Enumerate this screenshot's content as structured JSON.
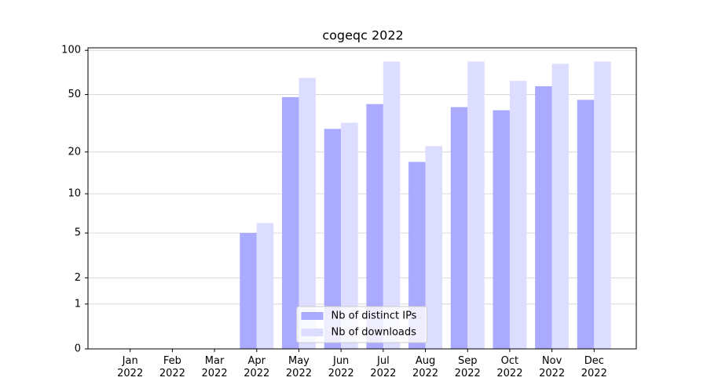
{
  "chart_data": {
    "type": "bar",
    "title": "cogeqc 2022",
    "categories": [
      "Jan\n2022",
      "Feb\n2022",
      "Mar\n2022",
      "Apr\n2022",
      "May\n2022",
      "Jun\n2022",
      "Jul\n2022",
      "Aug\n2022",
      "Sep\n2022",
      "Oct\n2022",
      "Nov\n2022",
      "Dec\n2022"
    ],
    "series": [
      {
        "name": "Nb of distinct IPs",
        "color": "#aaaaff",
        "values": [
          0,
          0,
          0,
          5,
          48,
          29,
          43,
          17,
          41,
          39,
          57,
          46
        ]
      },
      {
        "name": "Nb of downloads",
        "color": "#ddddff",
        "values": [
          0,
          0,
          0,
          6,
          65,
          32,
          84,
          22,
          84,
          62,
          81,
          84
        ]
      }
    ],
    "yscale": "log1p",
    "ylim": [
      0,
      104
    ],
    "yticks": [
      0,
      1,
      2,
      5,
      10,
      20,
      50,
      100
    ],
    "grid": true,
    "legend": "lower center"
  }
}
